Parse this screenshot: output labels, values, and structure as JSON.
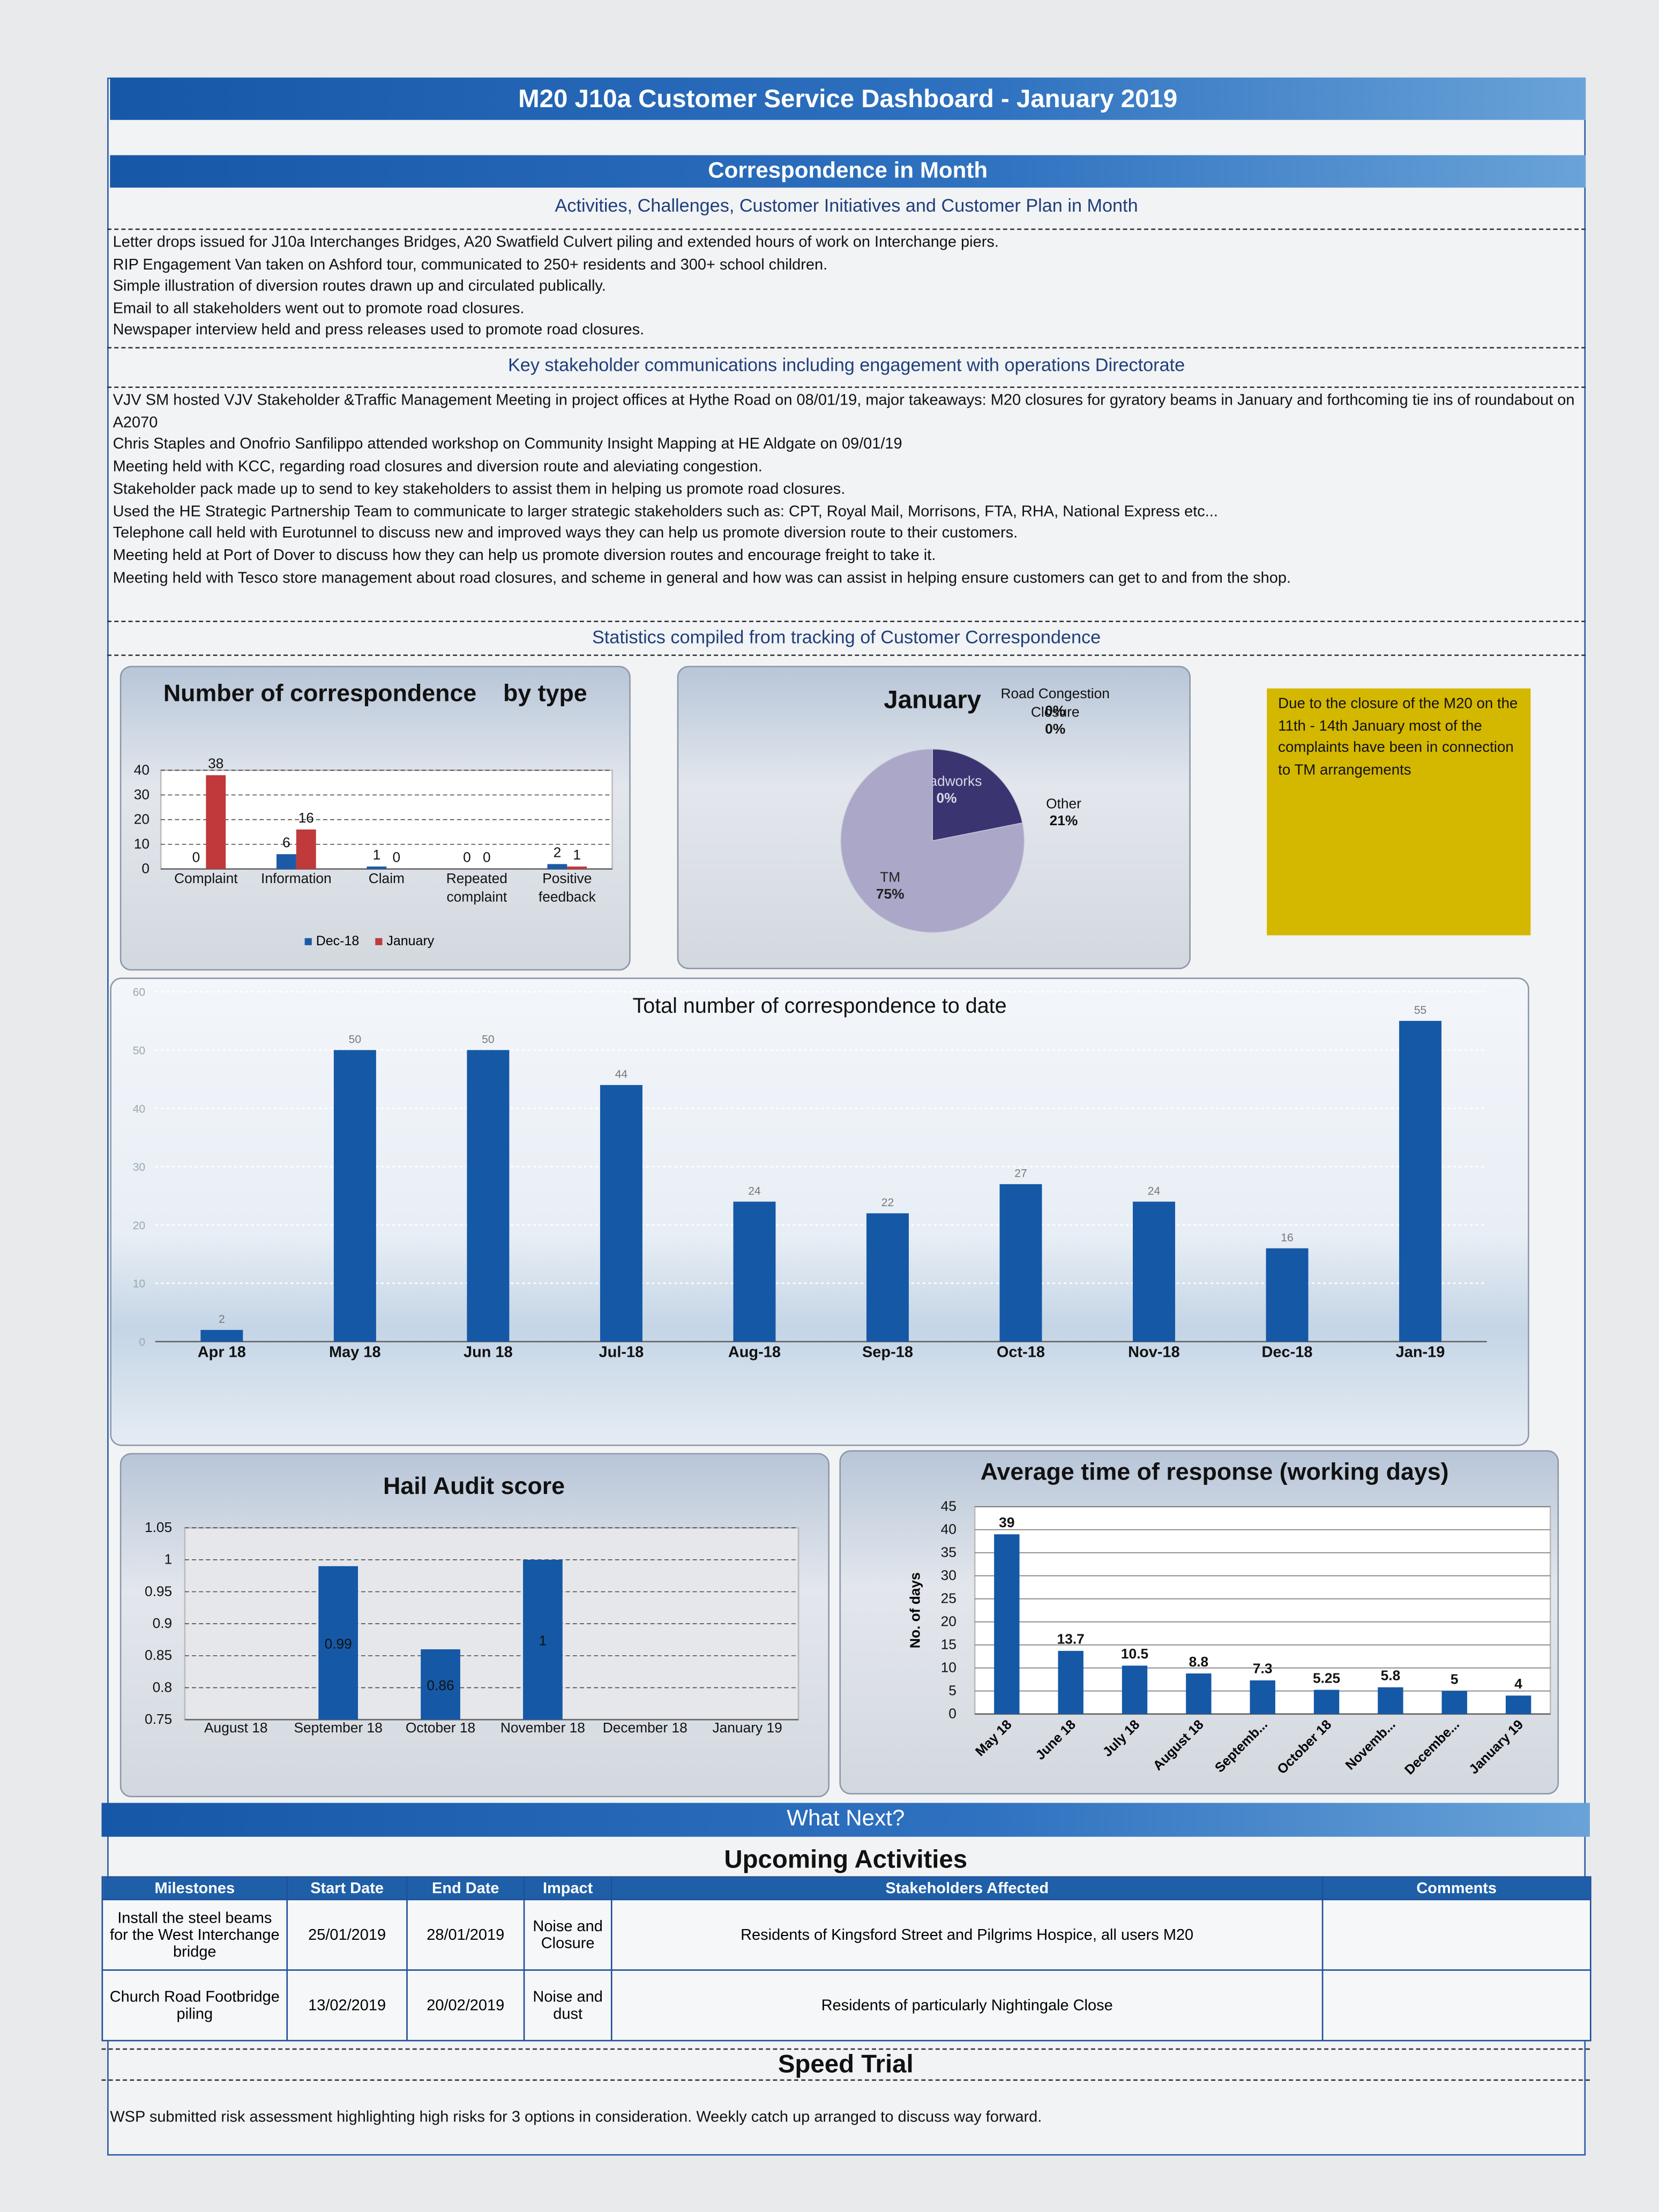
{
  "header": {
    "title": "M20 J10a Customer Service Dashboard - January 2019"
  },
  "correspondence": {
    "title": "Correspondence in Month",
    "activities": {
      "heading": "Activities, Challenges, Customer Initiatives and Customer Plan in Month",
      "items": [
        "Letter drops issued for J10a Interchanges Bridges, A20 Swatfield Culvert piling and extended hours of work on Interchange piers.",
        "RIP Engagement Van taken on Ashford tour, communicated to 250+ residents and 300+ school children.",
        "Simple illustration of diversion routes drawn up and circulated publically.",
        "Email to all stakeholders went out to promote road closures.",
        "Newspaper interview held and press releases used to promote road closures."
      ]
    },
    "stakeholder": {
      "heading": "Key stakeholder communications including engagement with operations Directorate",
      "items": [
        "VJV SM hosted VJV Stakeholder &Traffic Management Meeting in project offices at Hythe Road on 08/01/19, major takeaways: M20 closures for gyratory beams in January and forthcoming tie ins of roundabout on A2070",
        "Chris Staples and Onofrio Sanfilippo attended workshop on Community Insight Mapping at HE Aldgate on 09/01/19",
        "Meeting held with KCC, regarding road closures and diversion route and aleviating congestion.",
        "Stakeholder pack made up to send to key stakeholders to assist them in helping us promote road closures.",
        "Used the HE Strategic Partnership Team to communicate to larger strategic stakeholders such as: CPT, Royal Mail, Morrisons, FTA, RHA, National Express etc...",
        "Telephone call held with Eurotunnel to discuss new and improved ways they can help us promote diversion route to their customers.",
        "Meeting held at Port of Dover to discuss how they can help us promote diversion routes and encourage freight to take it.",
        "Meeting held with Tesco store management about road closures, and scheme in general and how was can assist in helping ensure customers can get to and from the shop."
      ]
    },
    "statistics_heading": "Statistics compiled from tracking of Customer Correspondence"
  },
  "chart_data": [
    {
      "type": "bar",
      "title": "Number of correspondence    by type",
      "categories": [
        "Complaint",
        "Information",
        "Claim",
        "Repeated complaint",
        "Positive feedback"
      ],
      "series": [
        {
          "name": "Dec-18",
          "color": "#1c5aa8",
          "values": [
            0,
            6,
            1,
            0,
            2
          ]
        },
        {
          "name": "January",
          "color": "#c0393b",
          "values": [
            38,
            16,
            0,
            0,
            1
          ]
        }
      ],
      "ylim": [
        0,
        40
      ],
      "yticks": [
        0,
        10,
        20,
        30,
        40
      ],
      "grid": true,
      "legend": "bottom"
    },
    {
      "type": "pie",
      "title": "January",
      "categories": [
        "Road Congestion",
        "Closure",
        "Other",
        "Roadworks",
        "TM"
      ],
      "values": [
        0,
        0,
        21,
        0,
        75
      ],
      "value_labels": [
        "0%",
        "0%",
        "21%",
        "0%",
        "75%"
      ],
      "colors": [
        "#6a7fb5",
        "#8f8fc0",
        "#3a3570",
        "#d9737a",
        "#aaa7c9"
      ]
    },
    {
      "type": "bar",
      "title": "Total number of correspondence to date",
      "categories": [
        "Apr 18",
        "May 18",
        "Jun 18",
        "Jul-18",
        "Aug-18",
        "Sep-18",
        "Oct-18",
        "Nov-18",
        "Dec-18",
        "Jan-19"
      ],
      "values": [
        2,
        50,
        50,
        44,
        24,
        22,
        27,
        24,
        16,
        55
      ],
      "color": "#1558a6",
      "ylim": [
        0,
        60
      ],
      "yticks": [
        0,
        10,
        20,
        30,
        40,
        50,
        60
      ],
      "grid": true
    },
    {
      "type": "bar",
      "title": "Hail Audit score",
      "categories": [
        "August 18",
        "September 18",
        "October 18",
        "November 18",
        "December 18",
        "January 19"
      ],
      "values": [
        null,
        0.99,
        0.86,
        1,
        null,
        null
      ],
      "color": "#1558a6",
      "ylim": [
        0.75,
        1.05
      ],
      "yticks": [
        0.75,
        0.8,
        0.85,
        0.9,
        0.95,
        1,
        1.05
      ],
      "grid": true
    },
    {
      "type": "bar",
      "title": "Average time of response (working days)",
      "ylabel": "No. of days",
      "categories": [
        "May 18",
        "June 18",
        "July 18",
        "August 18",
        "Septemb...",
        "October 18",
        "Novemb...",
        "Decembe...",
        "January 19"
      ],
      "values": [
        39,
        13.7,
        10.5,
        8.8,
        7.3,
        5.25,
        5.8,
        5,
        4
      ],
      "color": "#1558a6",
      "ylim": [
        0,
        45
      ],
      "yticks": [
        0,
        5,
        10,
        15,
        20,
        25,
        30,
        35,
        40,
        45
      ],
      "grid": true
    }
  ],
  "note": "Due to the closure of the M20 on the 11th - 14th January most of the complaints have been in connection to TM arrangements",
  "what_next": {
    "title": "What Next?",
    "upcoming": {
      "title": "Upcoming Activities",
      "table": {
        "columns": [
          "Milestones",
          "Start Date",
          "End Date",
          "Impact",
          "Stakeholders Affected",
          "Comments"
        ],
        "rows": [
          [
            "Install the steel beams for the West Interchange bridge",
            "25/01/2019",
            "28/01/2019",
            "Noise and Closure",
            "Residents of Kingsford Street and Pilgrims Hospice, all users M20"
          ],
          [
            "Church Road Footbridge piling",
            "13/02/2019",
            "20/02/2019",
            "Noise and dust",
            "Residents of particularly Nightingale Close"
          ]
        ]
      }
    },
    "speed_trial": {
      "title": "Speed Trial",
      "text": "WSP submitted risk assessment highlighting high risks for 3 options in consideration. Weekly catch up arranged to discuss way forward."
    }
  }
}
